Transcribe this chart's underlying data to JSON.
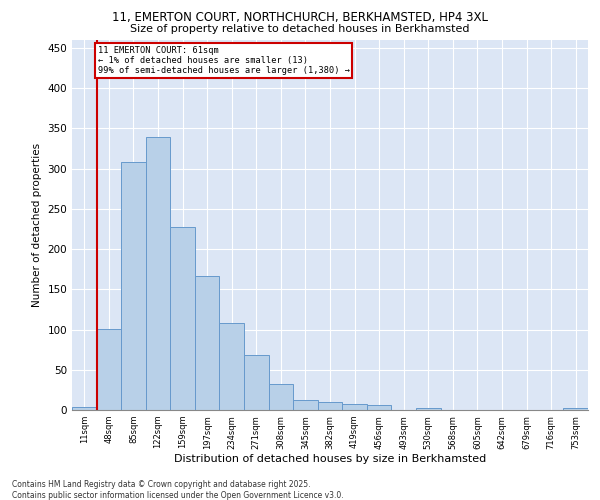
{
  "title_line1": "11, EMERTON COURT, NORTHCHURCH, BERKHAMSTED, HP4 3XL",
  "title_line2": "Size of property relative to detached houses in Berkhamsted",
  "xlabel": "Distribution of detached houses by size in Berkhamsted",
  "ylabel": "Number of detached properties",
  "categories": [
    "11sqm",
    "48sqm",
    "85sqm",
    "122sqm",
    "159sqm",
    "197sqm",
    "234sqm",
    "271sqm",
    "308sqm",
    "345sqm",
    "382sqm",
    "419sqm",
    "456sqm",
    "493sqm",
    "530sqm",
    "568sqm",
    "605sqm",
    "642sqm",
    "679sqm",
    "716sqm",
    "753sqm"
  ],
  "values": [
    4,
    101,
    308,
    340,
    228,
    167,
    108,
    68,
    32,
    12,
    10,
    8,
    6,
    0,
    2,
    0,
    0,
    0,
    0,
    0,
    2
  ],
  "bar_color": "#b8d0e8",
  "bar_edge_color": "#6699cc",
  "background_color": "#dce6f5",
  "grid_color": "#ffffff",
  "annotation_box_color": "#cc0000",
  "annotation_line1": "11 EMERTON COURT: 61sqm",
  "annotation_line2": "← 1% of detached houses are smaller (13)",
  "annotation_line3": "99% of semi-detached houses are larger (1,380) →",
  "vline_color": "#cc0000",
  "ylim": [
    0,
    460
  ],
  "yticks": [
    0,
    50,
    100,
    150,
    200,
    250,
    300,
    350,
    400,
    450
  ],
  "footer_line1": "Contains HM Land Registry data © Crown copyright and database right 2025.",
  "footer_line2": "Contains public sector information licensed under the Open Government Licence v3.0."
}
